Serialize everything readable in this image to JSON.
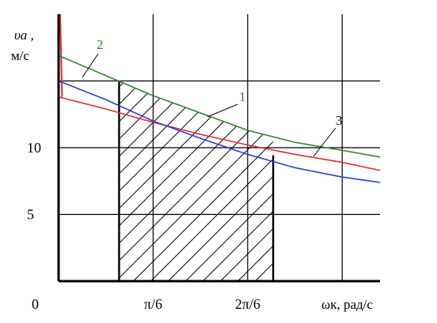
{
  "chart_data": {
    "type": "line",
    "title": "",
    "xlabel": "ωк, рад/с",
    "ylabel_line1": "υa ,",
    "ylabel_line2": "м/с",
    "origin_label": "0",
    "xlim": [
      0,
      3.4
    ],
    "ylim": [
      0,
      20
    ],
    "x_ticks": [
      {
        "value": 1,
        "label": "π/6"
      },
      {
        "value": 2,
        "label": "2π/6"
      }
    ],
    "y_ticks": [
      {
        "value": 5,
        "label": "5"
      },
      {
        "value": 10,
        "label": "10"
      }
    ],
    "grid_x": [
      1,
      2,
      3
    ],
    "grid_y": [
      5,
      10,
      15
    ],
    "grid": true,
    "hatched_region": {
      "x_start": 0.64,
      "x_end": 2.27
    },
    "series": [
      {
        "name": "1",
        "color": "#e8282f",
        "x": [
          0,
          0.5,
          1,
          1.5,
          2,
          2.5,
          3,
          3.4
        ],
        "y": [
          13.8,
          12.9,
          11.9,
          11.0,
          10.2,
          9.5,
          8.9,
          8.3
        ],
        "near_vertical": {
          "x": [
            0.0,
            0.02
          ],
          "y": [
            20,
            15
          ]
        }
      },
      {
        "name": "2",
        "color": "#2a8a2a",
        "x": [
          0,
          0.5,
          1,
          1.5,
          2,
          2.5,
          3,
          3.4
        ],
        "y": [
          16.9,
          15.4,
          13.9,
          12.6,
          11.3,
          10.4,
          9.8,
          9.3
        ]
      },
      {
        "name": "3",
        "color": "#2a3fd4",
        "x": [
          0,
          0.5,
          1,
          1.5,
          2,
          2.5,
          3,
          3.4
        ],
        "y": [
          15.0,
          13.6,
          12.0,
          10.7,
          9.5,
          8.5,
          7.8,
          7.4
        ]
      }
    ],
    "curve_labels": [
      {
        "series": "1",
        "text": "1",
        "color": "#2a8a2a"
      },
      {
        "series": "2",
        "text": "2",
        "color": "#2a8a2a"
      },
      {
        "series": "3",
        "text": "3",
        "color": "#000000"
      }
    ]
  }
}
